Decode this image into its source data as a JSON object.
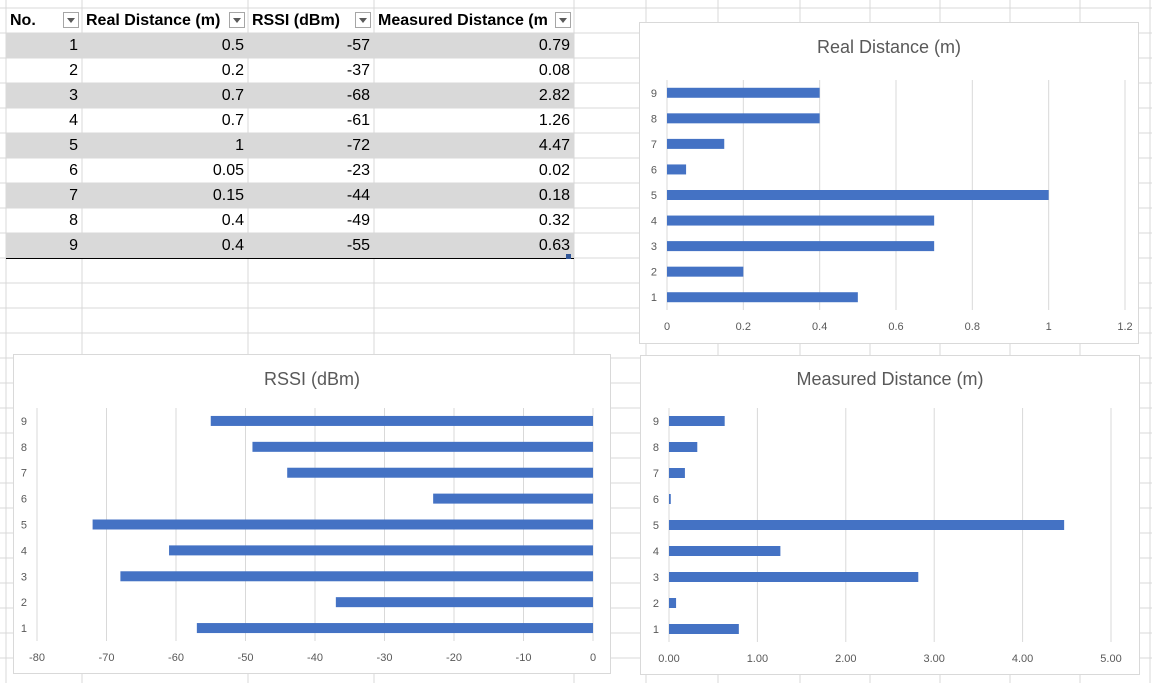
{
  "table": {
    "headers": [
      "No.",
      "Real Distance (m)",
      "RSSI (dBm)",
      "Measured Distance (m"
    ],
    "rows": [
      [
        "1",
        "0.5",
        "-57",
        "0.79"
      ],
      [
        "2",
        "0.2",
        "-37",
        "0.08"
      ],
      [
        "3",
        "0.7",
        "-68",
        "2.82"
      ],
      [
        "4",
        "0.7",
        "-61",
        "1.26"
      ],
      [
        "5",
        "1",
        "-72",
        "4.47"
      ],
      [
        "6",
        "0.05",
        "-23",
        "0.02"
      ],
      [
        "7",
        "0.15",
        "-44",
        "0.18"
      ],
      [
        "8",
        "0.4",
        "-49",
        "0.32"
      ],
      [
        "9",
        "0.4",
        "-55",
        "0.63"
      ]
    ]
  },
  "colors": {
    "bar": "#4472c4",
    "gridline": "#d9d9d9",
    "axis_text": "#595959",
    "band": "#d9d9d9"
  },
  "icons": {
    "filter": "dropdown-arrow-icon"
  },
  "chart_data": [
    {
      "type": "bar",
      "orientation": "horizontal",
      "title": "Real Distance (m)",
      "categories": [
        "1",
        "2",
        "3",
        "4",
        "5",
        "6",
        "7",
        "8",
        "9"
      ],
      "values": [
        0.5,
        0.2,
        0.7,
        0.7,
        1,
        0.05,
        0.15,
        0.4,
        0.4
      ],
      "xlim": [
        0,
        1.2
      ],
      "ticks": [
        "0",
        "0.2",
        "0.4",
        "0.6",
        "0.8",
        "1",
        "1.2"
      ],
      "grid": true
    },
    {
      "type": "bar",
      "orientation": "horizontal",
      "title": "RSSI (dBm)",
      "categories": [
        "1",
        "2",
        "3",
        "4",
        "5",
        "6",
        "7",
        "8",
        "9"
      ],
      "values": [
        -57,
        -37,
        -68,
        -61,
        -72,
        -23,
        -44,
        -49,
        -55
      ],
      "xlim": [
        -80,
        0
      ],
      "ticks": [
        "-80",
        "-70",
        "-60",
        "-50",
        "-40",
        "-30",
        "-20",
        "-10",
        "0"
      ],
      "grid": true
    },
    {
      "type": "bar",
      "orientation": "horizontal",
      "title": "Measured Distance (m)",
      "categories": [
        "1",
        "2",
        "3",
        "4",
        "5",
        "6",
        "7",
        "8",
        "9"
      ],
      "values": [
        0.79,
        0.08,
        2.82,
        1.26,
        4.47,
        0.02,
        0.18,
        0.32,
        0.63
      ],
      "xlim": [
        0,
        5
      ],
      "ticks": [
        "0.00",
        "1.00",
        "2.00",
        "3.00",
        "4.00",
        "5.00"
      ],
      "grid": true
    }
  ]
}
